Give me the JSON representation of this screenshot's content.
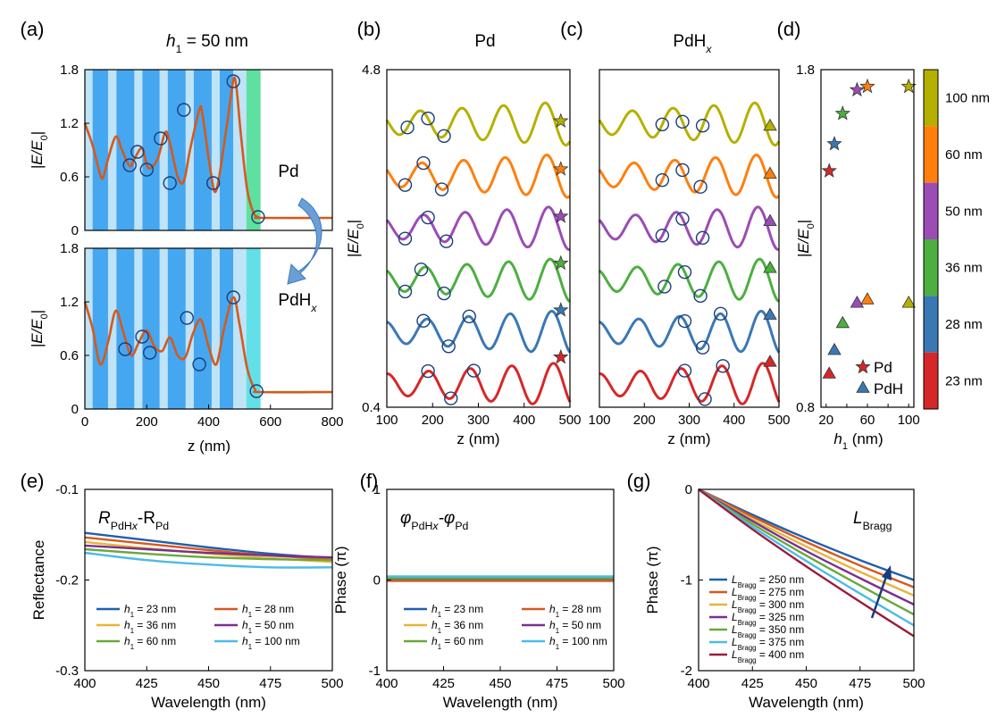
{
  "panel_labels": [
    "(a)",
    "(b)",
    "(c)",
    "(d)",
    "(e)",
    "(f)",
    "(g)"
  ],
  "chart_data": [
    {
      "panel": "(a) top",
      "type": "line",
      "title_prefix": "h",
      "title_sub": "1",
      "title_suffix": " =  50 nm",
      "ylabel": "|E/E0|",
      "ylabel_parts": [
        "|E/E",
        "0",
        "|"
      ],
      "xlim": [
        0,
        800
      ],
      "ylim": [
        0,
        1.8
      ],
      "yticks": [
        "0",
        "0.6",
        "1.2",
        "1.8"
      ],
      "layers": [
        [
          0,
          25,
          "light"
        ],
        [
          25,
          75,
          "dark"
        ],
        [
          75,
          102,
          "light"
        ],
        [
          102,
          160,
          "dark"
        ],
        [
          160,
          186,
          "light"
        ],
        [
          186,
          242,
          "dark"
        ],
        [
          242,
          268,
          "light"
        ],
        [
          268,
          326,
          "dark"
        ],
        [
          326,
          352,
          "light"
        ],
        [
          352,
          410,
          "dark"
        ],
        [
          410,
          436,
          "light"
        ],
        [
          436,
          480,
          "dark"
        ],
        [
          480,
          522,
          "light"
        ],
        [
          522,
          568,
          "metal"
        ]
      ],
      "x": [
        0,
        25,
        50,
        60,
        75,
        100,
        120,
        145,
        160,
        185,
        205,
        235,
        260,
        275,
        300,
        320,
        340,
        370,
        380,
        405,
        425,
        460,
        480,
        490,
        505,
        525,
        545,
        560,
        570,
        800
      ],
      "y": [
        1.2,
        0.95,
        0.62,
        0.6,
        0.8,
        1.05,
        0.9,
        0.72,
        0.8,
        0.92,
        0.7,
        0.8,
        1.1,
        0.98,
        0.6,
        0.55,
        0.9,
        1.35,
        1.3,
        0.7,
        0.45,
        1.2,
        1.68,
        1.6,
        1.05,
        0.45,
        0.2,
        0.15,
        0.14,
        0.14
      ],
      "markers": [
        [
          145,
          0.73
        ],
        [
          170,
          0.88
        ],
        [
          200,
          0.68
        ],
        [
          245,
          1.03
        ],
        [
          275,
          0.53
        ],
        [
          320,
          1.35
        ],
        [
          415,
          0.53
        ],
        [
          480,
          1.67
        ],
        [
          560,
          0.15
        ]
      ],
      "annotation": "Pd"
    },
    {
      "panel": "(a) bottom",
      "type": "line",
      "ylabel": "|E/E0|",
      "ylabel_parts": [
        "|E/E",
        "0",
        "|"
      ],
      "xlabel": "z (nm)",
      "xlim": [
        0,
        800
      ],
      "ylim": [
        0,
        1.8
      ],
      "xticks": [
        "0",
        "200",
        "400",
        "600",
        "800"
      ],
      "yticks": [
        "0",
        "0.6",
        "1.2",
        "1.8"
      ],
      "layers": [
        [
          0,
          25,
          "light"
        ],
        [
          25,
          75,
          "dark"
        ],
        [
          75,
          102,
          "light"
        ],
        [
          102,
          160,
          "dark"
        ],
        [
          160,
          186,
          "light"
        ],
        [
          186,
          242,
          "dark"
        ],
        [
          242,
          268,
          "light"
        ],
        [
          268,
          326,
          "dark"
        ],
        [
          326,
          352,
          "light"
        ],
        [
          352,
          410,
          "dark"
        ],
        [
          410,
          436,
          "light"
        ],
        [
          436,
          480,
          "dark"
        ],
        [
          480,
          522,
          "light"
        ],
        [
          522,
          568,
          "hydride"
        ]
      ],
      "x": [
        0,
        25,
        50,
        75,
        100,
        125,
        150,
        175,
        200,
        225,
        250,
        275,
        300,
        325,
        350,
        375,
        400,
        425,
        450,
        480,
        500,
        525,
        550,
        570,
        800
      ],
      "y": [
        1.2,
        0.9,
        0.5,
        0.75,
        1.1,
        0.85,
        0.6,
        0.75,
        0.88,
        0.7,
        0.65,
        0.8,
        0.6,
        0.58,
        0.85,
        1.0,
        0.7,
        0.5,
        0.9,
        1.25,
        0.95,
        0.45,
        0.22,
        0.19,
        0.19
      ],
      "markers": [
        [
          130,
          0.67
        ],
        [
          185,
          0.81
        ],
        [
          210,
          0.63
        ],
        [
          330,
          1.02
        ],
        [
          370,
          0.5
        ],
        [
          480,
          1.25
        ],
        [
          555,
          0.2
        ]
      ],
      "annotation_parts": [
        "PdH",
        "x"
      ]
    },
    {
      "panel": "(b)",
      "type": "line",
      "title": "Pd",
      "xlabel": "z (nm)",
      "ylabel": "|E/E0|",
      "ylabel_parts": [
        "|E/E",
        "0",
        "|"
      ],
      "xlim": [
        100,
        500
      ],
      "ylim": [
        0.4,
        4.8
      ],
      "xticks": [
        "100",
        "200",
        "300",
        "400",
        "500"
      ],
      "yticks": [
        "0.4",
        "4.8"
      ],
      "series_colors": [
        "#d62728",
        "#3a78b4",
        "#4caf3f",
        "#9b4cb5",
        "#ff7f0e",
        "#b5b000"
      ],
      "offsets": [
        0.7,
        1.4,
        2.1,
        2.8,
        3.5,
        4.2
      ],
      "amplitude": 0.25,
      "markers_x": [
        [
          190,
          240,
          290
        ],
        [
          180,
          235,
          280
        ],
        [
          140,
          175,
          225
        ],
        [
          140,
          190,
          230
        ],
        [
          140,
          180,
          220
        ],
        [
          145,
          190,
          225
        ]
      ],
      "end_markers": "star"
    },
    {
      "panel": "(c)",
      "type": "line",
      "title_parts": [
        "PdH",
        "x"
      ],
      "xlabel": "z (nm)",
      "xlim": [
        100,
        500
      ],
      "ylim": [
        0.4,
        4.8
      ],
      "xticks": [
        "100",
        "200",
        "300",
        "400",
        "500"
      ],
      "series_colors": [
        "#d62728",
        "#3a78b4",
        "#4caf3f",
        "#9b4cb5",
        "#ff7f0e",
        "#b5b000"
      ],
      "offsets": [
        0.7,
        1.4,
        2.1,
        2.8,
        3.5,
        4.2
      ],
      "amplitude": 0.25,
      "markers_x": [
        [
          290,
          335,
          375
        ],
        [
          290,
          330,
          370
        ],
        [
          245,
          290,
          325
        ],
        [
          240,
          285,
          330
        ],
        [
          240,
          285,
          325
        ],
        [
          240,
          285,
          330
        ]
      ],
      "end_markers": "triangle"
    },
    {
      "panel": "(d)",
      "type": "scatter",
      "xlabel_parts": [
        "h",
        "1",
        " (nm)"
      ],
      "ylabel": "|E/E0|",
      "ylabel_parts": [
        "|E/E",
        "0",
        "|"
      ],
      "xlim": [
        15,
        105
      ],
      "ylim": [
        0.8,
        1.8
      ],
      "xticks": [
        "20",
        "40",
        "60",
        "80",
        "100"
      ],
      "yticks": [
        "0.8",
        "1.8"
      ],
      "pd_stars": [
        [
          23,
          1.5
        ],
        [
          28,
          1.58
        ],
        [
          36,
          1.67
        ],
        [
          50,
          1.74
        ],
        [
          60,
          1.75
        ],
        [
          100,
          1.75
        ]
      ],
      "pdh_triangles": [
        [
          23,
          0.9
        ],
        [
          28,
          0.97
        ],
        [
          36,
          1.05
        ],
        [
          50,
          1.11
        ],
        [
          60,
          1.12
        ],
        [
          100,
          1.11
        ]
      ],
      "legend": [
        "Pd",
        "PdH"
      ],
      "colorbar_labels": [
        "100 nm",
        "60 nm",
        "50 nm",
        "36 nm",
        "28 nm",
        "23 nm"
      ],
      "colorbar_colors": [
        "#b5b000",
        "#ff7f0e",
        "#9b4cb5",
        "#4caf3f",
        "#3a78b4",
        "#d62728"
      ]
    },
    {
      "panel": "(e)",
      "type": "line",
      "annotation_parts": [
        "R",
        "PdH",
        "x",
        "-R",
        "Pd"
      ],
      "xlabel": "Wavelength (nm)",
      "ylabel": "Reflectance",
      "xlim": [
        400,
        500
      ],
      "ylim": [
        -0.3,
        -0.1
      ],
      "xticks": [
        "400",
        "425",
        "450",
        "475",
        "500"
      ],
      "yticks": [
        "-0.3",
        "-0.2",
        "-0.1"
      ],
      "x": [
        400,
        425,
        450,
        475,
        500
      ],
      "series": [
        {
          "legend": "h1 = 23 nm",
          "sub": "1",
          "rest": " = 23 nm",
          "color": "#1f5fae",
          "values": [
            -0.148,
            -0.156,
            -0.164,
            -0.171,
            -0.176
          ]
        },
        {
          "legend": "h1 = 28 nm",
          "sub": "1",
          "rest": " = 28 nm",
          "color": "#d35a1e",
          "values": [
            -0.153,
            -0.16,
            -0.167,
            -0.173,
            -0.177
          ]
        },
        {
          "legend": "h1 = 36 nm",
          "sub": "1",
          "rest": " = 36 nm",
          "color": "#e6b53a",
          "values": [
            -0.158,
            -0.165,
            -0.171,
            -0.176,
            -0.18
          ]
        },
        {
          "legend": "h1 = 50 nm",
          "sub": "1",
          "rest": " = 50 nm",
          "color": "#7b2f8e",
          "values": [
            -0.162,
            -0.166,
            -0.17,
            -0.173,
            -0.175
          ]
        },
        {
          "legend": "h1 = 60 nm",
          "sub": "1",
          "rest": " = 60 nm",
          "color": "#6aa83a",
          "values": [
            -0.166,
            -0.171,
            -0.175,
            -0.177,
            -0.178
          ]
        },
        {
          "legend": "h1 = 100 nm",
          "sub": "1",
          "rest": " = 100 nm",
          "color": "#4dbbe6",
          "values": [
            -0.17,
            -0.178,
            -0.183,
            -0.186,
            -0.186
          ]
        }
      ]
    },
    {
      "panel": "(f)",
      "type": "line",
      "annotation_parts": [
        "φ",
        "PdH",
        "x",
        "-φ",
        "Pd"
      ],
      "xlabel": "Wavelength (nm)",
      "ylabel": "Phase (π)",
      "xlim": [
        400,
        500
      ],
      "ylim": [
        -1,
        1
      ],
      "xticks": [
        "400",
        "425",
        "450",
        "475",
        "500"
      ],
      "yticks": [
        "-1",
        "0",
        "1"
      ],
      "x": [
        400,
        425,
        450,
        475,
        500
      ],
      "series": [
        {
          "legend": "h1 = 23 nm",
          "sub": "1",
          "rest": " = 23 nm",
          "color": "#1f5fae",
          "values": [
            0.0,
            0.0,
            0.0,
            0.0,
            0.0
          ]
        },
        {
          "legend": "h1 = 28 nm",
          "sub": "1",
          "rest": " = 28 nm",
          "color": "#d35a1e",
          "values": [
            -0.01,
            -0.01,
            -0.01,
            -0.01,
            -0.01
          ]
        },
        {
          "legend": "h1 = 36 nm",
          "sub": "1",
          "rest": " = 36 nm",
          "color": "#e6b53a",
          "values": [
            0.005,
            0.005,
            0.005,
            0.005,
            0.005
          ]
        },
        {
          "legend": "h1 = 50 nm",
          "sub": "1",
          "rest": " = 50 nm",
          "color": "#7b2f8e",
          "values": [
            0.01,
            0.01,
            0.01,
            0.01,
            0.01
          ]
        },
        {
          "legend": "h1 = 60 nm",
          "sub": "1",
          "rest": " = 60 nm",
          "color": "#6aa83a",
          "values": [
            0.02,
            0.02,
            0.02,
            0.02,
            0.02
          ]
        },
        {
          "legend": "h1 = 100 nm",
          "sub": "1",
          "rest": " = 100 nm",
          "color": "#4dbbe6",
          "values": [
            0.04,
            0.04,
            0.04,
            0.04,
            0.04
          ]
        }
      ]
    },
    {
      "panel": "(g)",
      "type": "line",
      "annotation_parts": [
        "L",
        "Bragg"
      ],
      "xlabel": "Wavelength (nm)",
      "ylabel": "Phase (π)",
      "xlim": [
        400,
        500
      ],
      "ylim": [
        -2,
        0
      ],
      "xticks": [
        "400",
        "425",
        "450",
        "475",
        "500"
      ],
      "yticks": [
        "-2",
        "-1",
        "0"
      ],
      "x": [
        400,
        425,
        450,
        475,
        500
      ],
      "series": [
        {
          "legend": "LBragg = 250 nm",
          "sub": "Bragg",
          "rest": " = 250 nm",
          "color": "#1f5fae",
          "values": [
            0,
            -0.28,
            -0.54,
            -0.78,
            -1.0
          ]
        },
        {
          "legend": "LBragg = 275 nm",
          "sub": "Bragg",
          "rest": " = 275 nm",
          "color": "#d35a1e",
          "values": [
            0,
            -0.3,
            -0.58,
            -0.84,
            -1.08
          ]
        },
        {
          "legend": "LBragg = 300 nm",
          "sub": "Bragg",
          "rest": " = 300 nm",
          "color": "#e6b53a",
          "values": [
            0,
            -0.33,
            -0.63,
            -0.91,
            -1.17
          ]
        },
        {
          "legend": "LBragg = 325 nm",
          "sub": "Bragg",
          "rest": " = 325 nm",
          "color": "#7b2f8e",
          "values": [
            0,
            -0.35,
            -0.68,
            -0.98,
            -1.27
          ]
        },
        {
          "legend": "LBragg = 350 nm",
          "sub": "Bragg",
          "rest": " = 350 nm",
          "color": "#6aa83a",
          "values": [
            0,
            -0.38,
            -0.73,
            -1.06,
            -1.38
          ]
        },
        {
          "legend": "LBragg = 375 nm",
          "sub": "Bragg",
          "rest": " = 375 nm",
          "color": "#4dbbe6",
          "values": [
            0,
            -0.41,
            -0.79,
            -1.15,
            -1.5
          ]
        },
        {
          "legend": "LBragg = 400 nm",
          "sub": "Bragg",
          "rest": " = 400 nm",
          "color": "#9b1c3a",
          "values": [
            0,
            -0.44,
            -0.85,
            -1.24,
            -1.62
          ]
        }
      ]
    }
  ]
}
